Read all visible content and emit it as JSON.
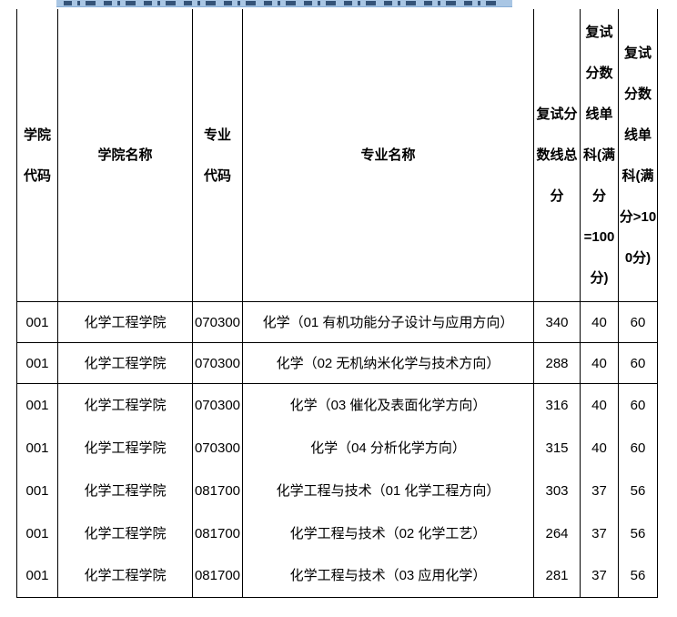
{
  "page": {
    "clipped_highlight_bar": {
      "highlight_color": "#a9c6e4",
      "text_color": "#17365d",
      "description_visible": "bottom sliver of a highlighted text line, characters cut off"
    }
  },
  "table": {
    "columns": [
      {
        "key": "college-code",
        "label": "学院\n代码"
      },
      {
        "key": "college-name",
        "label": "学院名称"
      },
      {
        "key": "major-code",
        "label": "专业\n代码"
      },
      {
        "key": "major-name",
        "label": "专业名称"
      },
      {
        "key": "retest-total",
        "label": "复试分\n数线总\n分"
      },
      {
        "key": "retest-single-100",
        "label": "复试\n分数\n线单\n科(满\n分\n=100\n分)"
      },
      {
        "key": "retest-single-gt100",
        "label": "复试\n分数\n线单\n科(满\n分>10\n0分)"
      }
    ],
    "rows": [
      [
        "001",
        "化学工程学院",
        "070300",
        "化学（01 有机功能分子设计与应用方向）",
        "340",
        "40",
        "60"
      ],
      [
        "001",
        "化学工程学院",
        "070300",
        "化学（02 无机纳米化学与技术方向）",
        "288",
        "40",
        "60"
      ],
      [
        "001",
        "化学工程学院",
        "070300",
        "化学（03 催化及表面化学方向）",
        "316",
        "40",
        "60"
      ],
      [
        "001",
        "化学工程学院",
        "070300",
        "化学（04 分析化学方向）",
        "315",
        "40",
        "60"
      ],
      [
        "001",
        "化学工程学院",
        "081700",
        "化学工程与技术（01 化学工程方向）",
        "303",
        "37",
        "56"
      ],
      [
        "001",
        "化学工程学院",
        "081700",
        "化学工程与技术（02 化学工艺）",
        "264",
        "37",
        "56"
      ],
      [
        "001",
        "化学工程学院",
        "081700",
        "化学工程与技术（03 应用化学）",
        "281",
        "37",
        "56"
      ]
    ],
    "border_color": "#000000",
    "rows_with_bottom_border": [
      0,
      1
    ]
  }
}
